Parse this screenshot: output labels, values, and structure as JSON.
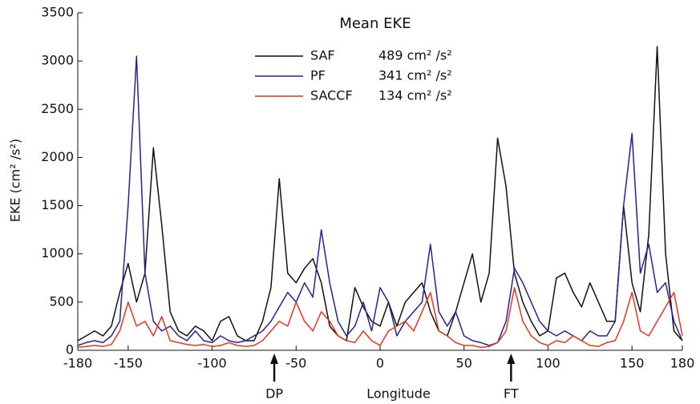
{
  "chart_data": {
    "type": "line",
    "legend_title": "Mean EKE",
    "y_label": "EKE (cm² /s²)",
    "x_label": "Longitude",
    "xlim": [
      -180,
      180
    ],
    "xticks": [
      -180,
      -150,
      -100,
      -50,
      0,
      50,
      100,
      150,
      180
    ],
    "ylim": [
      0,
      3500
    ],
    "yticks": [
      0,
      500,
      1000,
      1500,
      2000,
      2500,
      3000,
      3500
    ],
    "annotations": [
      {
        "text": "DP",
        "x": -63
      },
      {
        "text": "FT",
        "x": 78
      }
    ],
    "x": [
      -180,
      -175,
      -170,
      -165,
      -160,
      -155,
      -150,
      -145,
      -140,
      -135,
      -130,
      -125,
      -120,
      -115,
      -110,
      -105,
      -100,
      -95,
      -90,
      -85,
      -80,
      -75,
      -70,
      -65,
      -60,
      -55,
      -50,
      -45,
      -40,
      -35,
      -30,
      -25,
      -20,
      -15,
      -10,
      -5,
      0,
      5,
      10,
      15,
      20,
      25,
      30,
      35,
      40,
      45,
      50,
      55,
      60,
      65,
      70,
      75,
      80,
      85,
      90,
      95,
      100,
      105,
      110,
      115,
      120,
      125,
      130,
      135,
      140,
      145,
      150,
      155,
      160,
      165,
      170,
      175,
      180
    ],
    "series": [
      {
        "name": "SAF",
        "mean_label": "489 cm² /s²",
        "color": "#111111",
        "values": [
          100,
          150,
          200,
          150,
          250,
          600,
          900,
          500,
          800,
          2100,
          1300,
          400,
          200,
          150,
          250,
          200,
          100,
          300,
          350,
          150,
          100,
          100,
          300,
          650,
          1780,
          800,
          700,
          850,
          950,
          700,
          250,
          150,
          100,
          650,
          450,
          300,
          250,
          500,
          250,
          500,
          600,
          700,
          400,
          200,
          150,
          400,
          700,
          1000,
          500,
          800,
          2200,
          1700,
          800,
          500,
          300,
          150,
          200,
          750,
          800,
          600,
          450,
          700,
          500,
          300,
          300,
          1500,
          700,
          400,
          1200,
          3150,
          1000,
          200,
          100
        ]
      },
      {
        "name": "PF",
        "mean_label": "341 cm² /s²",
        "color": "#2a1f9a",
        "values": [
          50,
          80,
          100,
          80,
          150,
          300,
          1500,
          3050,
          800,
          300,
          200,
          250,
          150,
          100,
          200,
          100,
          80,
          150,
          100,
          80,
          100,
          150,
          200,
          300,
          450,
          600,
          500,
          700,
          550,
          1250,
          700,
          300,
          150,
          250,
          500,
          200,
          650,
          500,
          150,
          300,
          400,
          500,
          1100,
          400,
          250,
          400,
          150,
          100,
          80,
          50,
          80,
          300,
          850,
          700,
          500,
          300,
          200,
          150,
          200,
          150,
          100,
          200,
          150,
          150,
          300,
          1500,
          2250,
          800,
          1100,
          600,
          700,
          300,
          100
        ]
      },
      {
        "name": "SACCF",
        "mean_label": "134 cm² /s²",
        "color": "#e8361c",
        "values": [
          30,
          40,
          50,
          40,
          60,
          200,
          500,
          250,
          300,
          150,
          350,
          100,
          80,
          60,
          50,
          60,
          40,
          50,
          80,
          50,
          40,
          50,
          100,
          200,
          300,
          250,
          500,
          300,
          200,
          400,
          300,
          150,
          100,
          80,
          200,
          100,
          50,
          200,
          250,
          300,
          200,
          400,
          600,
          200,
          150,
          80,
          50,
          50,
          30,
          40,
          80,
          200,
          650,
          300,
          150,
          80,
          50,
          100,
          80,
          150,
          100,
          50,
          40,
          80,
          100,
          300,
          600,
          200,
          150,
          300,
          450,
          600,
          150
        ]
      }
    ]
  }
}
